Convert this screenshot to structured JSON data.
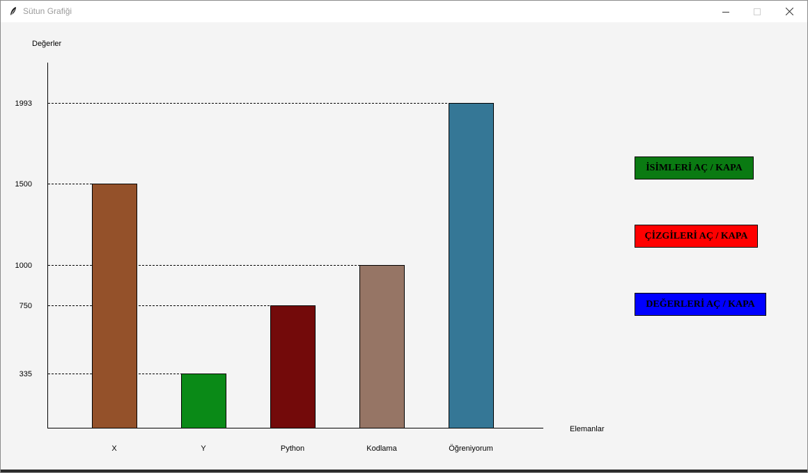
{
  "window": {
    "title": "Sütun Grafiği",
    "controls": [
      "minimize",
      "maximize",
      "close"
    ]
  },
  "chart_data": {
    "type": "bar",
    "categories": [
      "X",
      "Y",
      "Python",
      "Kodlama",
      "Öğreniyorum"
    ],
    "values": [
      1500,
      335,
      750,
      1000,
      1993
    ],
    "colors": [
      "#94512a",
      "#0a8a17",
      "#730a0a",
      "#967565",
      "#357796"
    ],
    "ylabel": "Değerler",
    "xlabel": "Elemanlar",
    "yticks": [
      335,
      750,
      1000,
      1500,
      1993
    ],
    "ylim": [
      0,
      1993
    ],
    "reference_lines": "dashed",
    "legend": "none"
  },
  "buttons": {
    "names_toggle": {
      "label": "İSİMLERİ AÇ / KAPA",
      "color": "#0a7a12"
    },
    "lines_toggle": {
      "label": "ÇİZGİLERİ AÇ / KAPA",
      "color": "#ff0000"
    },
    "values_toggle": {
      "label": "DEĞERLERİ AÇ / KAPA",
      "color": "#0000ff"
    }
  }
}
